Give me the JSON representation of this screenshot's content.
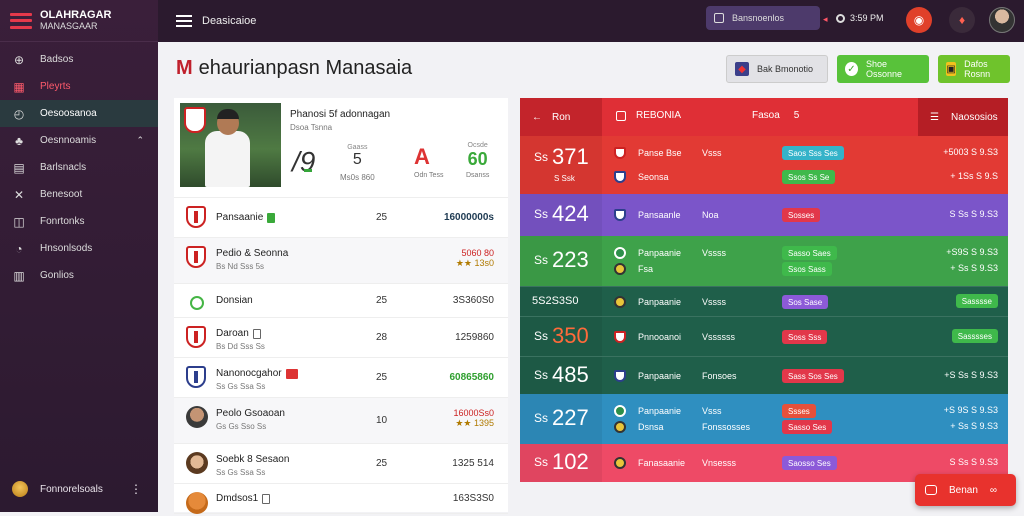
{
  "brand": {
    "line1": "OLAHRAGAR",
    "line2": "MANASGAAR"
  },
  "sidebar": {
    "items": [
      {
        "label": "Badsos",
        "icon": "plus-circle-icon",
        "state": "normal"
      },
      {
        "label": "Pleyrts",
        "icon": "grid-icon",
        "state": "active"
      },
      {
        "label": "Oesoosanoa",
        "icon": "clock-icon",
        "state": "highlight"
      },
      {
        "label": "Oesnnoamis",
        "icon": "users-icon",
        "state": "normal",
        "chevron": "⌃"
      },
      {
        "label": "Barlsnacls",
        "icon": "list-icon",
        "state": "normal"
      },
      {
        "label": "Benesoot",
        "icon": "tools-icon",
        "state": "normal"
      },
      {
        "label": "Fonrtonks",
        "icon": "clipboard-icon",
        "state": "normal"
      },
      {
        "label": "Hnsonlsods",
        "icon": "bell-icon",
        "state": "normal"
      },
      {
        "label": "Gonlios",
        "icon": "table-icon",
        "state": "normal"
      }
    ],
    "user": {
      "label": "Fonnorelsoals",
      "more": "⋮"
    }
  },
  "topbar": {
    "title": "Deasicaioe",
    "search_placeholder": "Bansnoenlos",
    "status": "3:59 PM"
  },
  "page": {
    "title": "ehaurianpasn Manasaia",
    "title_mark": "M",
    "buttons": [
      {
        "label": "Bak Bmonotio",
        "icon": "shield-icon"
      },
      {
        "label": "Shoe Ossonne",
        "icon": "check-circle-icon"
      },
      {
        "label": "Dafos Rosnn",
        "icon": "tag-icon"
      }
    ]
  },
  "player_card": {
    "name": "Phanosi 5f adonnagan",
    "sub": "Dsoa Tsnna",
    "number": "/9",
    "stat_label": "Gaass",
    "stat_value": "5",
    "stat_sub": "Ms0s 860",
    "letter": "A",
    "letter_sub": "Odn Tess",
    "score_label": "Ocsde",
    "score_value": "60",
    "score_sub": "Dsanss"
  },
  "players": [
    {
      "name": "Pansaanie",
      "sub": "",
      "col": "25",
      "value": "16000000s",
      "value_style": "dark",
      "icon": "crest",
      "tag": "g",
      "alt": false
    },
    {
      "name": "Pedio & Seonna",
      "sub": "Bs Nd Sss 5s",
      "col": "",
      "value_a": "5060 80",
      "value_b": "★★ 13s0",
      "icon": "crest",
      "tag": "",
      "alt": true
    },
    {
      "name": "Donsian",
      "sub": "",
      "col": "25",
      "value": "3S360S0",
      "value_style": "normal",
      "icon": "green-circle",
      "tag": "",
      "alt": false
    },
    {
      "name": "Daroan",
      "sub": "Bs Dd Sss Ss",
      "col": "28",
      "value": "1259860",
      "value_style": "normal",
      "icon": "crest",
      "tag": "o",
      "alt": false
    },
    {
      "name": "Nanonocgahor",
      "sub": "Ss Gs Ssa Ss",
      "col": "25",
      "value": "60865860",
      "value_style": "green",
      "icon": "crest-blue",
      "tag": "r",
      "alt": false
    },
    {
      "name": "Peolo Gsoaoan",
      "sub": "Gs Gs Sso Ss",
      "col": "10",
      "value_a": "16000Ss0",
      "value_b": "★★ 1395",
      "value_style": "dark2",
      "icon": "face1",
      "tag": "",
      "alt": true
    },
    {
      "name": "Soebk 8 Sesaon",
      "sub": "Ss Gs Ssa Ss",
      "col": "25",
      "value": "1325 514",
      "value_style": "normal",
      "icon": "face2",
      "tag": "",
      "alt": false
    },
    {
      "name": "Dmdsos1",
      "sub": "",
      "col": "",
      "value": "163S3S0",
      "value_style": "normal",
      "icon": "face3",
      "tag": "o",
      "alt": false
    }
  ],
  "standings_header": {
    "col1": "Ron",
    "col2": "REBONIA",
    "col3": "Fasoa",
    "col3b": "5",
    "col4": "Naososios"
  },
  "standings": [
    {
      "num": "371",
      "cap": "Ss",
      "sub": "S Ssk",
      "bg": "#e23a34",
      "lines": [
        {
          "t1": "Panse Bse",
          "t2": "Vsss",
          "pill": "Saos Sss Ses",
          "pill_color": "cy",
          "val": "+5003 S 9.S3",
          "val_pill": ""
        },
        {
          "t1": "Seonsa",
          "t2": "",
          "pill": "Ssos Ss Se",
          "pill_color": "gr",
          "val": "+ 1Ss S 9.S",
          "val_pill": ""
        }
      ]
    },
    {
      "num": "424",
      "cap": "Ss",
      "sub": "",
      "bg": "#7b55c9",
      "lines": [
        {
          "t1": "Pansaanle",
          "t2": "Noa",
          "pill": "Sosses",
          "pill_color": "rd",
          "val": "S Ss S 9.S3",
          "val_pill": ""
        }
      ]
    },
    {
      "num": "223",
      "cap": "Ss",
      "sub": "",
      "bg": "#3ea24a",
      "lines": [
        {
          "t1": "Panpaanie",
          "t2": "Vssss",
          "pill": "Sasso Saes",
          "pill_color": "gr",
          "val": "+S9S S 9.S3",
          "val_pill": ""
        },
        {
          "t1": "Fsa",
          "t2": "",
          "pill": "Ssos Sass",
          "pill_color": "gr",
          "val": "+ Ss S 9.S3",
          "val_pill": ""
        }
      ]
    },
    {
      "num": "",
      "cap": "5S2S3S0",
      "sub": "",
      "bg": "#1f5f4a",
      "lines": [
        {
          "t1": "Panpaanie",
          "t2": "Vssss",
          "pill": "Sos Sase",
          "pill_color": "pu",
          "val": "",
          "val_pill": "Sasssse"
        }
      ]
    },
    {
      "num": "350",
      "cap": "Ss",
      "sub": "",
      "bg": "#1f5f4a",
      "num_color": "#ff6a3a",
      "lines": [
        {
          "t1": "Pnnooanoi",
          "t2": "Vssssss",
          "pill": "Soss Sss",
          "pill_color": "rd",
          "val": "",
          "val_pill": "Sasssses"
        }
      ]
    },
    {
      "num": "485",
      "cap": "Ss",
      "sub": "",
      "bg": "#1f5f4a",
      "lines": [
        {
          "t1": "Panpaanie",
          "t2": "Fonsoes",
          "pill": "Sass Sos Ses",
          "pill_color": "rd",
          "val": "+S Ss S 9.S3",
          "val_pill": ""
        }
      ]
    },
    {
      "num": "227",
      "cap": "Ss",
      "sub": "",
      "bg": "#2f8fc0",
      "lines": [
        {
          "t1": "Panpaanie",
          "t2": "Vsss",
          "pill": "Ssses",
          "pill_color": "or",
          "val": "+S 9S S 9.S3",
          "val_pill": ""
        },
        {
          "t1": "Dsnsa",
          "t2": "Fonssosses",
          "pill": "Sasso Ses",
          "pill_color": "rd",
          "val": "+ Ss S 9.S3",
          "val_pill": ""
        }
      ]
    },
    {
      "num": "102",
      "cap": "Ss",
      "sub": "",
      "bg": "#ee4a66",
      "lines": [
        {
          "t1": "Fanasaanie",
          "t2": "Vnsesss",
          "pill": "Saosso Ses",
          "pill_color": "pu",
          "val": "S Ss S 9.S3",
          "val_pill": ""
        }
      ]
    }
  ],
  "fab": {
    "label": "Benan"
  }
}
